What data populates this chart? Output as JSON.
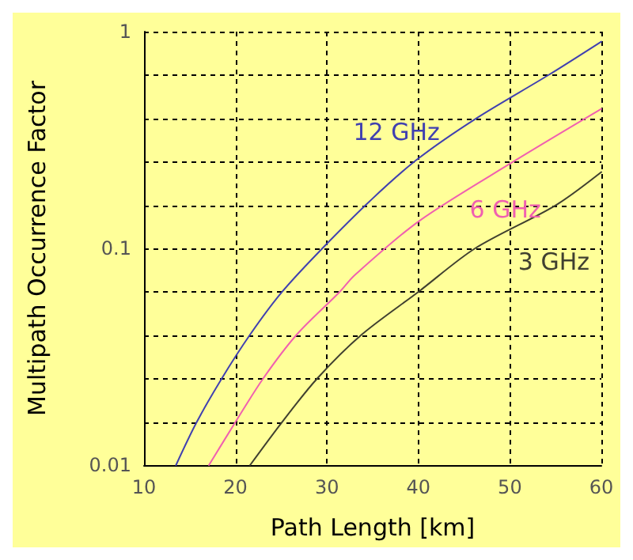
{
  "chart_data": {
    "type": "line",
    "xlabel": "Path Length [km]",
    "ylabel": "Multipath Occurrence Factor",
    "log": "y",
    "grid": true,
    "marker": "none",
    "line_style": "solid",
    "xlim": [
      10,
      60
    ],
    "xticks": [
      10,
      20,
      30,
      40,
      50,
      60
    ],
    "ylim": [
      0.01,
      1
    ],
    "yticks": [
      0.01,
      {
        "value": 0.0158,
        "label": null
      },
      {
        "value": 0.0251,
        "label": null
      },
      {
        "value": 0.0398,
        "label": null
      },
      {
        "value": 0.0631,
        "label": null
      },
      0.1,
      {
        "value": 0.158,
        "label": null
      },
      {
        "value": 0.251,
        "label": null
      },
      {
        "value": 0.398,
        "label": null
      },
      {
        "value": 0.631,
        "label": null
      },
      1
    ],
    "series": [
      {
        "name": "12 GHz",
        "color": "#4040b0",
        "x": [
          13.5,
          15.7,
          18.4,
          21.6,
          25.1,
          29.5,
          35,
          40,
          46.4,
          54.2,
          60
        ],
        "values": [
          0.01,
          0.0156,
          0.0247,
          0.04,
          0.063,
          0.1,
          0.17,
          0.26,
          0.4,
          0.63,
          0.9
        ]
      },
      {
        "name": "6 GHz",
        "color": "#f060b0",
        "x": [
          17.1,
          20,
          23,
          26.7,
          31.4,
          33,
          40,
          50.3,
          60
        ],
        "values": [
          0.01,
          0.0158,
          0.025,
          0.04,
          0.063,
          0.075,
          0.133,
          0.25,
          0.44
        ]
      },
      {
        "name": "3 GHz",
        "color": "#404030",
        "x": [
          21.6,
          25.1,
          28.9,
          33.8,
          40,
          46.2,
          55,
          60
        ],
        "values": [
          0.01,
          0.0158,
          0.025,
          0.04,
          0.063,
          0.1,
          0.158,
          0.225
        ]
      }
    ]
  }
}
